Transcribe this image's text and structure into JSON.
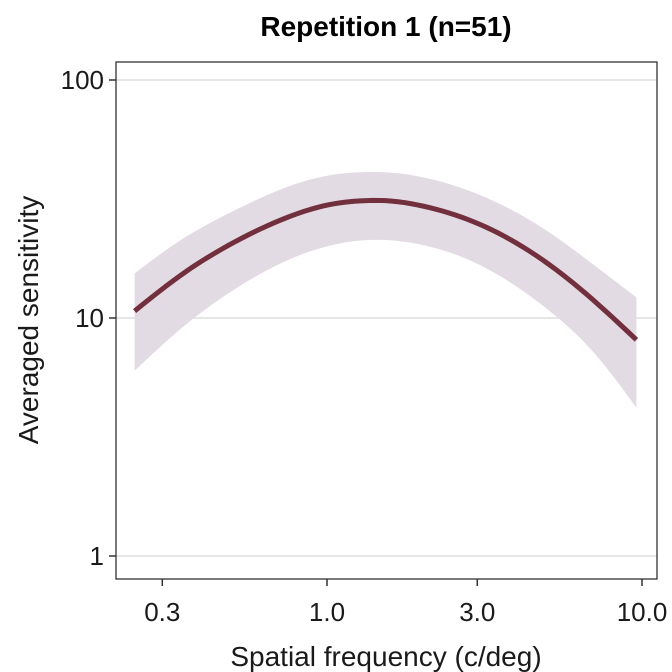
{
  "chart_data": {
    "type": "line",
    "title": "Repetition 1 (n=51)",
    "xlabel": "Spatial frequency (c/deg)",
    "ylabel": "Averaged sensitivity",
    "x_scale": "log",
    "y_scale": "log",
    "xlim": [
      0.2,
      10.5
    ],
    "ylim": [
      0.8,
      120
    ],
    "x_ticks": [
      0.3,
      1.0,
      3.0,
      10.0
    ],
    "x_tick_labels": [
      "0.3",
      "1.0",
      "3.0",
      "10.0"
    ],
    "y_ticks": [
      1,
      10,
      100
    ],
    "y_tick_labels": [
      "1",
      "10",
      "100"
    ],
    "grid": "horizontal-major",
    "series": [
      {
        "name": "Averaged sensitivity",
        "color": "#722f3d",
        "band_color": "#e3dbe3",
        "x": [
          0.245,
          0.35,
          0.5,
          0.75,
          1.0,
          1.3,
          1.6,
          2.0,
          3.0,
          5.0,
          7.0,
          9.6
        ],
        "y": [
          10.7,
          15.4,
          20.6,
          26.5,
          29.8,
          31.1,
          31.0,
          29.6,
          25.0,
          17.0,
          11.9,
          8.1
        ],
        "lower": [
          6.0,
          9.2,
          13.0,
          17.5,
          20.0,
          21.2,
          21.2,
          20.3,
          16.9,
          10.9,
          7.2,
          4.2
        ],
        "upper": [
          15.4,
          21.6,
          28.0,
          35.6,
          39.6,
          41.0,
          40.8,
          39.1,
          33.2,
          23.2,
          16.8,
          12.2
        ]
      }
    ]
  }
}
